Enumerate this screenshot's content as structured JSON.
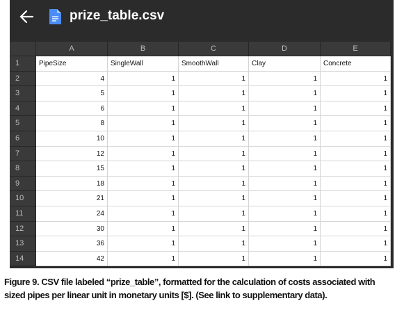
{
  "header": {
    "title": "prize_table.csv"
  },
  "table": {
    "column_letters": [
      "A",
      "B",
      "C",
      "D",
      "E"
    ],
    "rows": [
      {
        "number": 1,
        "cells": [
          "PipeSize",
          "SingleWall",
          "SmoothWall",
          "Clay",
          "Concrete"
        ]
      },
      {
        "number": 2,
        "cells": [
          4,
          1,
          1,
          1,
          1
        ]
      },
      {
        "number": 3,
        "cells": [
          5,
          1,
          1,
          1,
          1
        ]
      },
      {
        "number": 4,
        "cells": [
          6,
          1,
          1,
          1,
          1
        ]
      },
      {
        "number": 5,
        "cells": [
          8,
          1,
          1,
          1,
          1
        ]
      },
      {
        "number": 6,
        "cells": [
          10,
          1,
          1,
          1,
          1
        ]
      },
      {
        "number": 7,
        "cells": [
          12,
          1,
          1,
          1,
          1
        ]
      },
      {
        "number": 8,
        "cells": [
          15,
          1,
          1,
          1,
          1
        ]
      },
      {
        "number": 9,
        "cells": [
          18,
          1,
          1,
          1,
          1
        ]
      },
      {
        "number": 10,
        "cells": [
          21,
          1,
          1,
          1,
          1
        ]
      },
      {
        "number": 11,
        "cells": [
          24,
          1,
          1,
          1,
          1
        ]
      },
      {
        "number": 12,
        "cells": [
          30,
          1,
          1,
          1,
          1
        ]
      },
      {
        "number": 13,
        "cells": [
          36,
          1,
          1,
          1,
          1
        ]
      },
      {
        "number": 14,
        "cells": [
          42,
          1,
          1,
          1,
          1
        ]
      }
    ]
  },
  "caption": {
    "label": "Figure 9.",
    "text": "CSV file labeled “prize_table”, formatted for the calculation of costs associated with sized pipes per linear unit in monetary units [$]. (See link to supplementary data)."
  }
}
